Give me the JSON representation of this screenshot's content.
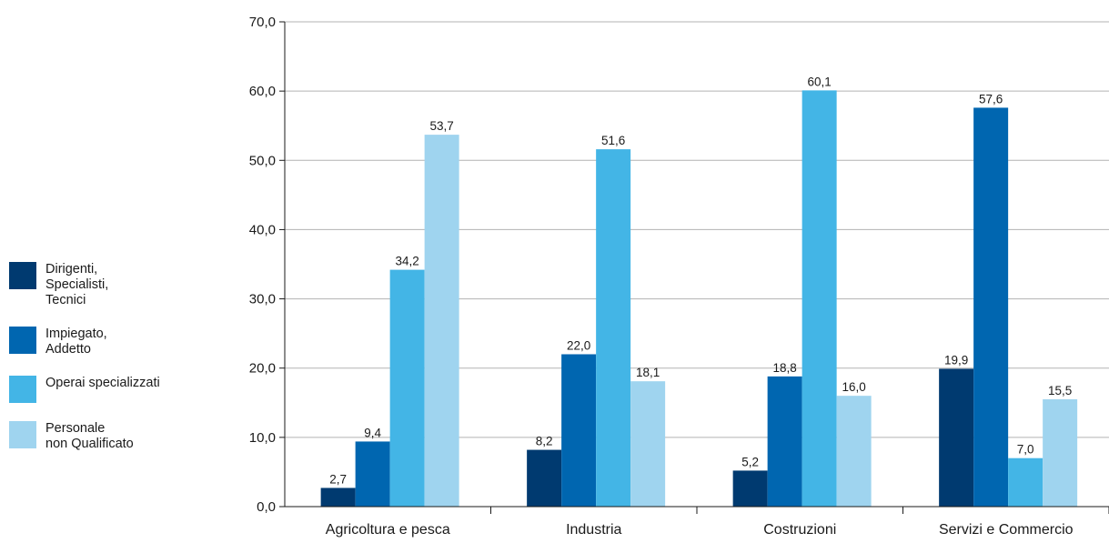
{
  "chart_data": {
    "type": "bar",
    "categories": [
      "Agricoltura e pesca",
      "Industria",
      "Costruzioni",
      "Servizi e Commercio"
    ],
    "series": [
      {
        "name": "Dirigenti,\nSpecialisti,\nTecnici",
        "color": "#003a70",
        "values": [
          2.7,
          8.2,
          5.2,
          19.9
        ],
        "labels": [
          "2,7",
          "8,2",
          "5,2",
          "19,9"
        ]
      },
      {
        "name": "Impiegato,\nAddetto",
        "color": "#0066b0",
        "values": [
          9.4,
          22.0,
          18.8,
          57.6
        ],
        "labels": [
          "9,4",
          "22,0",
          "18,8",
          "57,6"
        ]
      },
      {
        "name": "Operai specializzati",
        "color": "#43b5e6",
        "values": [
          34.2,
          51.6,
          60.1,
          7.0
        ],
        "labels": [
          "34,2",
          "51,6",
          "60,1",
          "7,0"
        ]
      },
      {
        "name": "Personale\nnon Qualificato",
        "color": "#9fd4ef",
        "values": [
          53.7,
          18.1,
          16.0,
          15.5
        ],
        "labels": [
          "53,7",
          "18,1",
          "16,0",
          "15,5"
        ]
      }
    ],
    "yticks": [
      "0,0",
      "10,0",
      "20,0",
      "30,0",
      "40,0",
      "50,0",
      "60,0",
      "70,0"
    ],
    "ylim": [
      0,
      70
    ],
    "grid": true,
    "legend_position": "left"
  }
}
